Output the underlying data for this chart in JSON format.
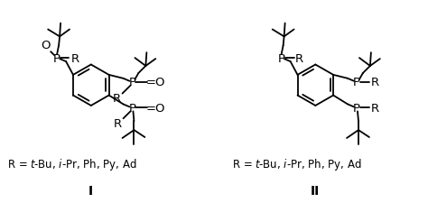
{
  "bg": "#ffffff",
  "lw": 1.3,
  "fig_w": 4.74,
  "fig_h": 2.26,
  "dpi": 100,
  "label_left": "R = ",
  "label_left2": "$\\it{t}$-Bu, $\\it{i}$-Pr, Ph, Py, Ad",
  "label_right": "R = ",
  "label_right2": "$\\it{t}$-Bu, $\\it{i}$-Pr, Ph, Py, Ad",
  "roman1": "I",
  "roman2": "II"
}
